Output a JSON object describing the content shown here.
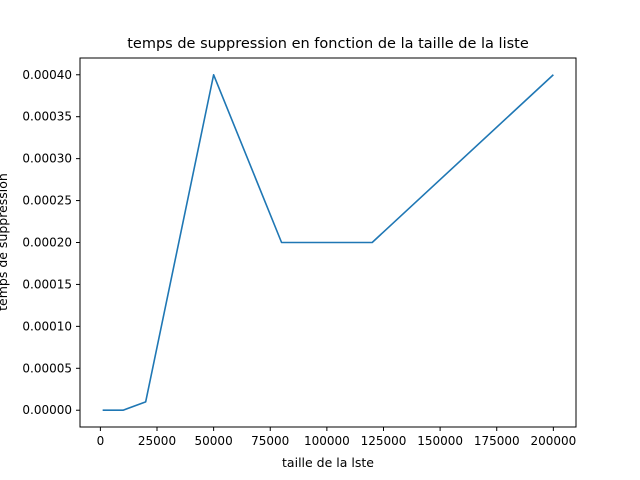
{
  "chart_data": {
    "type": "line",
    "title": "temps de suppression en fonction de la taille de la liste",
    "xlabel": "taille de la lste",
    "ylabel": "temps de suppression",
    "xlim": [
      -9000,
      210000
    ],
    "ylim": [
      -2e-05,
      0.00042
    ],
    "xticks": [
      0,
      25000,
      50000,
      75000,
      100000,
      125000,
      150000,
      175000,
      200000
    ],
    "xtick_labels": [
      "0",
      "25000",
      "50000",
      "75000",
      "100000",
      "125000",
      "150000",
      "175000",
      "200000"
    ],
    "yticks": [
      0,
      5e-05,
      0.0001,
      0.00015,
      0.0002,
      0.00025,
      0.0003,
      0.00035,
      0.0004
    ],
    "ytick_labels": [
      "0.00000",
      "0.00005",
      "0.00010",
      "0.00015",
      "0.00020",
      "0.00025",
      "0.00030",
      "0.00035",
      "0.00040"
    ],
    "grid": false,
    "line_color": "#1f77b4",
    "series": [
      {
        "x": [
          1000,
          10000,
          20000,
          50000,
          80000,
          120000,
          200000
        ],
        "y": [
          0.0,
          0.0,
          1e-05,
          0.0004,
          0.0002,
          0.0002,
          0.0004
        ]
      }
    ]
  }
}
